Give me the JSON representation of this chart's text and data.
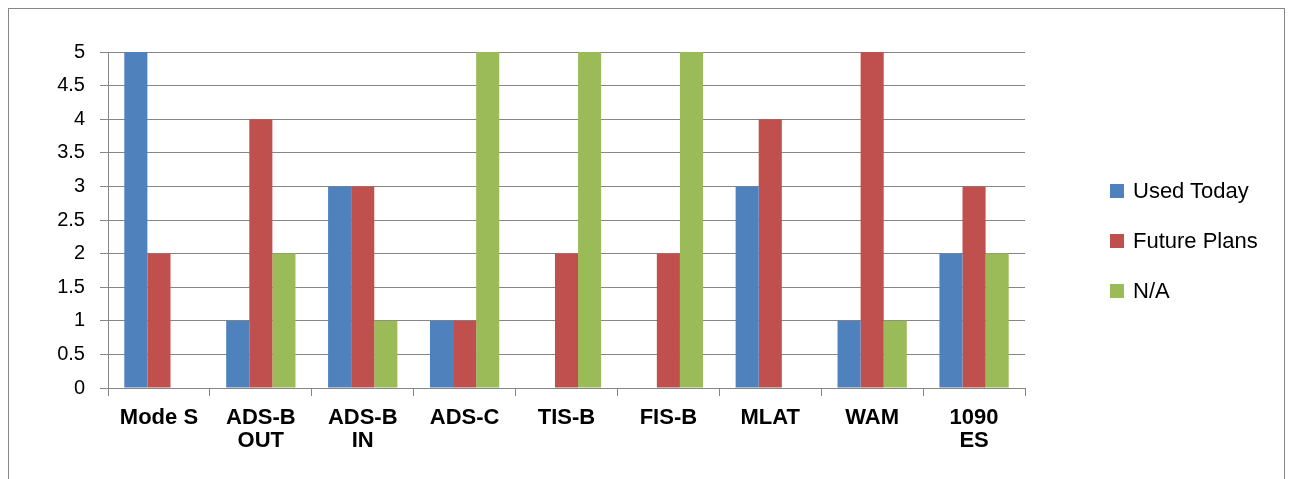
{
  "chart_data": {
    "type": "bar",
    "categories": [
      "Mode S",
      "ADS-B OUT",
      "ADS-B IN",
      "ADS-C",
      "TIS-B",
      "FIS-B",
      "MLAT",
      "WAM",
      "1090 ES"
    ],
    "series": [
      {
        "name": "Used Today",
        "color": "#4f81bd",
        "values": [
          5,
          1,
          3,
          1,
          0,
          0,
          3,
          1,
          2
        ]
      },
      {
        "name": "Future Plans",
        "color": "#c0504d",
        "values": [
          2,
          4,
          3,
          1,
          2,
          2,
          4,
          5,
          3
        ]
      },
      {
        "name": "N/A",
        "color": "#9bbb59",
        "values": [
          0,
          2,
          1,
          5,
          5,
          5,
          0,
          1,
          2
        ]
      }
    ],
    "ylim": [
      0,
      5
    ],
    "yticks": [
      0,
      0.5,
      1,
      1.5,
      2,
      2.5,
      3,
      3.5,
      4,
      4.5,
      5
    ],
    "grid": "y",
    "legend": "right"
  }
}
